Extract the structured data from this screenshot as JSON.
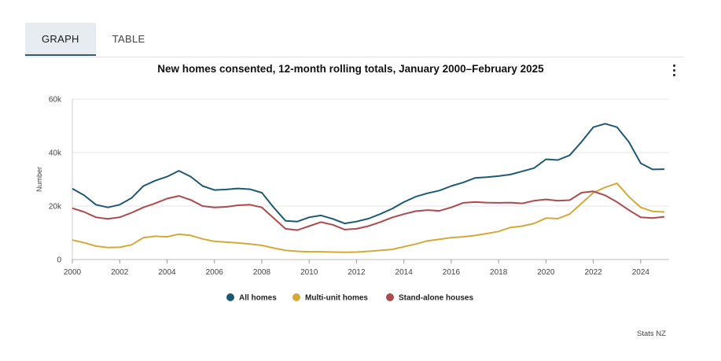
{
  "tabs": [
    {
      "label": "GRAPH",
      "active": true
    },
    {
      "label": "TABLE",
      "active": false
    }
  ],
  "source": "Stats NZ",
  "chart_data": {
    "type": "line",
    "title": "New homes consented, 12-month rolling totals, January 2000–February 2025",
    "xlabel": "",
    "ylabel": "Number",
    "xlim": [
      2000,
      2025.2
    ],
    "ylim": [
      0,
      60000
    ],
    "y_ticks": [
      {
        "value": 0,
        "label": "0"
      },
      {
        "value": 20000,
        "label": "20k"
      },
      {
        "value": 40000,
        "label": "40k"
      },
      {
        "value": 60000,
        "label": "60k"
      }
    ],
    "x_ticks": [
      "2000",
      "2002",
      "2004",
      "2006",
      "2008",
      "2010",
      "2012",
      "2014",
      "2016",
      "2018",
      "2020",
      "2022",
      "2024"
    ],
    "grid": true,
    "legend_position": "bottom",
    "x": [
      2000,
      2000.5,
      2001,
      2001.5,
      2002,
      2002.5,
      2003,
      2003.5,
      2004,
      2004.5,
      2005,
      2005.5,
      2006,
      2006.5,
      2007,
      2007.5,
      2008,
      2008.5,
      2009,
      2009.5,
      2010,
      2010.5,
      2011,
      2011.5,
      2012,
      2012.5,
      2013,
      2013.5,
      2014,
      2014.5,
      2015,
      2015.5,
      2016,
      2016.5,
      2017,
      2017.5,
      2018,
      2018.5,
      2019,
      2019.5,
      2020,
      2020.5,
      2021,
      2021.5,
      2022,
      2022.5,
      2023,
      2023.5,
      2024,
      2024.5,
      2025
    ],
    "series": [
      {
        "name": "All homes",
        "color": "#1d5a72",
        "values": [
          26500,
          24000,
          20500,
          19500,
          20500,
          23000,
          27500,
          29500,
          31000,
          33200,
          31000,
          27500,
          26000,
          26200,
          26600,
          26300,
          25000,
          19500,
          14500,
          14200,
          15800,
          16500,
          15200,
          13500,
          14200,
          15300,
          17000,
          19000,
          21500,
          23500,
          24800,
          25800,
          27500,
          28800,
          30500,
          30800,
          31200,
          31800,
          33000,
          34200,
          37500,
          37200,
          39000,
          44000,
          49500,
          50800,
          49500,
          44000,
          36000,
          33700,
          33800
        ]
      },
      {
        "name": "Multi-unit homes",
        "color": "#d4a93a",
        "values": [
          7300,
          6300,
          5000,
          4500,
          4600,
          5500,
          8200,
          8700,
          8500,
          9500,
          9000,
          7700,
          6800,
          6500,
          6200,
          5800,
          5300,
          4300,
          3400,
          3100,
          2900,
          2900,
          2800,
          2700,
          2800,
          3100,
          3400,
          3800,
          4800,
          5800,
          7000,
          7600,
          8200,
          8500,
          9000,
          9700,
          10500,
          12000,
          12500,
          13500,
          15500,
          15300,
          17000,
          21000,
          25000,
          27000,
          28500,
          23500,
          19500,
          18000,
          17800
        ]
      },
      {
        "name": "Stand-alone houses",
        "color": "#ad4a4e",
        "values": [
          19200,
          17800,
          15800,
          15200,
          15800,
          17500,
          19500,
          21000,
          22800,
          23800,
          22300,
          20000,
          19500,
          19700,
          20300,
          20500,
          19500,
          15500,
          11500,
          11000,
          12500,
          14000,
          13000,
          11200,
          11500,
          12500,
          14000,
          15700,
          17000,
          18100,
          18500,
          18200,
          19500,
          21200,
          21500,
          21300,
          21200,
          21300,
          21000,
          22000,
          22500,
          22000,
          22200,
          25000,
          25500,
          24000,
          21500,
          18500,
          15800,
          15500,
          16000
        ]
      }
    ]
  }
}
